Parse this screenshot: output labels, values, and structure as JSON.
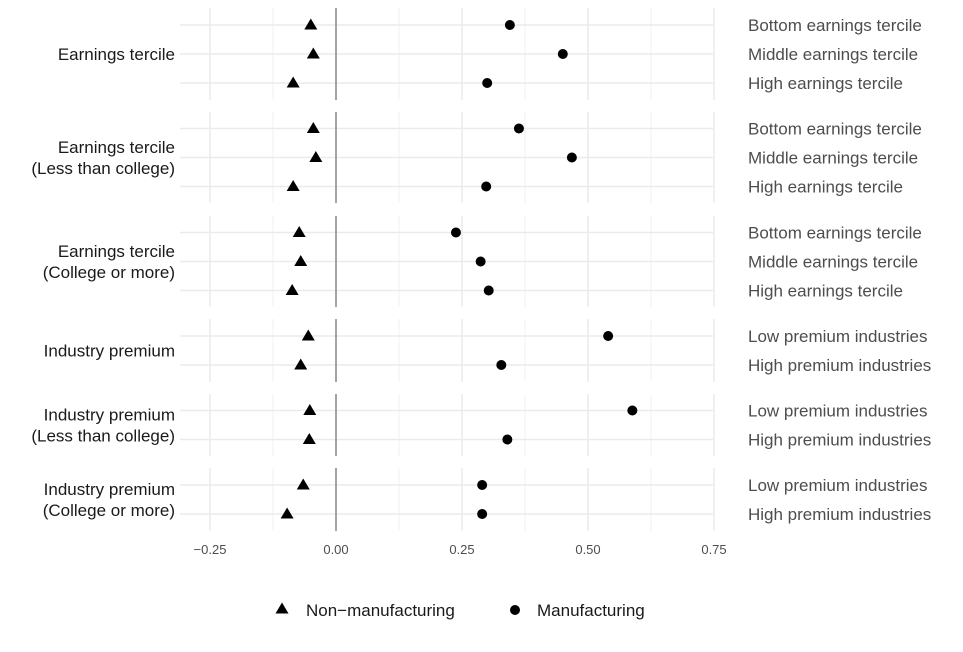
{
  "chart_data": {
    "type": "scatter",
    "x_ticks": [
      -0.25,
      0.0,
      0.25,
      0.5,
      0.75
    ],
    "x_tick_labels": [
      "−0.25",
      "0.00",
      "0.25",
      "0.50",
      "0.75"
    ],
    "xlim": [
      -0.32,
      0.75
    ],
    "grid": true,
    "legend_position": "bottom",
    "series": [
      {
        "name": "Non−manufacturing",
        "marker": "triangle",
        "color": "#000000"
      },
      {
        "name": "Manufacturing",
        "marker": "circle",
        "color": "#000000"
      }
    ],
    "panels": [
      {
        "label": [
          "Earnings tercile"
        ],
        "rows": [
          {
            "label": "Bottom earnings tercile",
            "non_manufacturing": -0.05,
            "manufacturing": 0.345
          },
          {
            "label": "Middle earnings tercile",
            "non_manufacturing": -0.045,
            "manufacturing": 0.45
          },
          {
            "label": "High earnings tercile",
            "non_manufacturing": -0.085,
            "manufacturing": 0.3
          }
        ]
      },
      {
        "label": [
          "Earnings tercile",
          "(Less than college)"
        ],
        "rows": [
          {
            "label": "Bottom earnings tercile",
            "non_manufacturing": -0.045,
            "manufacturing": 0.363
          },
          {
            "label": "Middle earnings tercile",
            "non_manufacturing": -0.04,
            "manufacturing": 0.468
          },
          {
            "label": "High earnings tercile",
            "non_manufacturing": -0.085,
            "manufacturing": 0.298
          }
        ]
      },
      {
        "label": [
          "Earnings tercile",
          "(College or more)"
        ],
        "rows": [
          {
            "label": "Bottom earnings tercile",
            "non_manufacturing": -0.073,
            "manufacturing": 0.238
          },
          {
            "label": "Middle earnings tercile",
            "non_manufacturing": -0.07,
            "manufacturing": 0.287
          },
          {
            "label": "High earnings tercile",
            "non_manufacturing": -0.087,
            "manufacturing": 0.303
          }
        ]
      },
      {
        "label": [
          "Industry premium"
        ],
        "rows": [
          {
            "label": "Low premium industries",
            "non_manufacturing": -0.055,
            "manufacturing": 0.54
          },
          {
            "label": "High premium industries",
            "non_manufacturing": -0.07,
            "manufacturing": 0.328
          }
        ]
      },
      {
        "label": [
          "Industry premium",
          "(Less than college)"
        ],
        "rows": [
          {
            "label": "Low premium industries",
            "non_manufacturing": -0.052,
            "manufacturing": 0.588
          },
          {
            "label": "High premium industries",
            "non_manufacturing": -0.053,
            "manufacturing": 0.34
          }
        ]
      },
      {
        "label": [
          "Industry premium",
          "(College or more)"
        ],
        "rows": [
          {
            "label": "Low premium industries",
            "non_manufacturing": -0.065,
            "manufacturing": 0.29
          },
          {
            "label": "High premium industries",
            "non_manufacturing": -0.097,
            "manufacturing": 0.29
          }
        ]
      }
    ]
  }
}
